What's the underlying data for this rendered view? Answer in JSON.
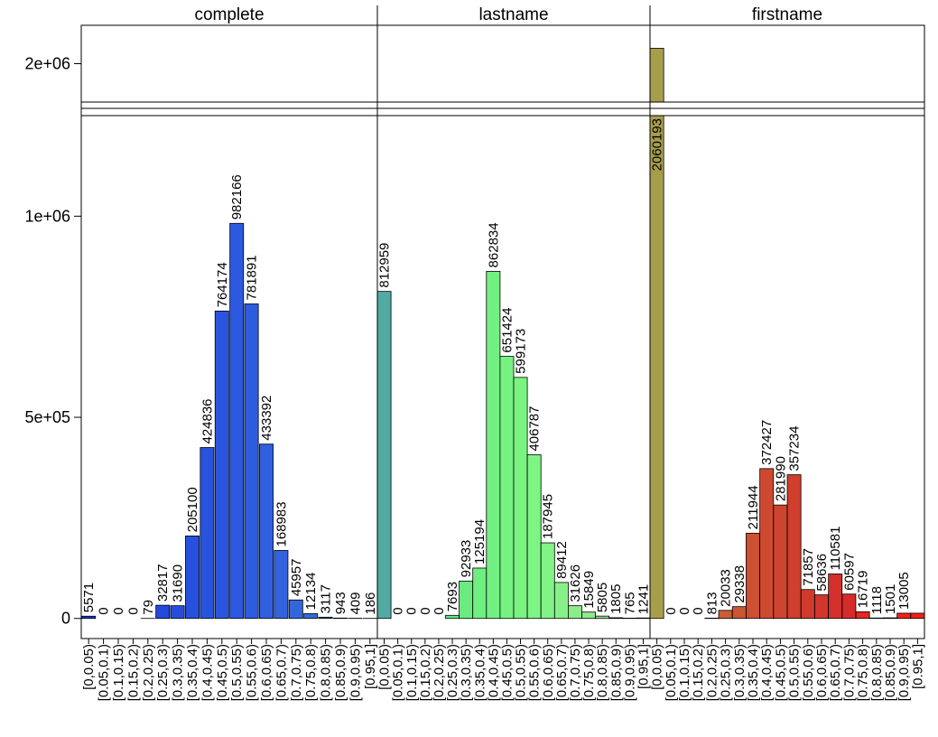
{
  "chart_data": {
    "type": "bar",
    "layout": "trellis",
    "broken_y_axis": true,
    "y_ticks_labels": [
      "0",
      "5e+05",
      "1e+06",
      "2e+06"
    ],
    "y_ticks": [
      0,
      500000,
      1000000,
      2000000
    ],
    "ylim_lower": [
      -50000,
      1250000
    ],
    "ylim_upper": [
      1850000,
      2150000
    ],
    "categories": [
      "[0,0.05)",
      "[0.05,0.1)",
      "[0.1,0.15)",
      "[0.15,0.2)",
      "[0.2,0.25)",
      "[0.25,0.3)",
      "[0.3,0.35)",
      "[0.35,0.4)",
      "[0.4,0.45)",
      "[0.45,0.5)",
      "[0.5,0.55)",
      "[0.55,0.6)",
      "[0.6,0.65)",
      "[0.65,0.7)",
      "[0.7,0.75)",
      "[0.75,0.8)",
      "[0.8,0.85)",
      "[0.85,0.9)",
      "[0.9,0.95)",
      "[0.95,1]"
    ],
    "panels": [
      {
        "title": "complete",
        "values": [
          5571,
          0,
          0,
          0,
          79,
          32817,
          31690,
          205100,
          424836,
          764174,
          982166,
          781891,
          433392,
          168983,
          45957,
          12134,
          3117,
          943,
          409,
          186
        ],
        "colors": [
          "#1a33d6",
          "#1c38d8",
          "#1e3dd9",
          "#2041db",
          "#2245dc",
          "#2449dd",
          "#254ddd",
          "#2650de",
          "#2853de",
          "#2a56df",
          "#2c59df",
          "#2e5cdf",
          "#305fdf",
          "#3263df",
          "#3466db",
          "#366ad6",
          "#386dd0",
          "#3a71cb",
          "#3c74c6",
          "#3e77c1"
        ]
      },
      {
        "title": "lastname",
        "values": [
          812959,
          0,
          0,
          0,
          0,
          7693,
          92933,
          125194,
          862834,
          651424,
          599173,
          406787,
          187945,
          89412,
          31626,
          15849,
          5805,
          1805,
          765,
          1241
        ],
        "colors": [
          "#52aaa3",
          "#55c38f",
          "#58d18a",
          "#5cdc86",
          "#60e384",
          "#66e883",
          "#6aeb82",
          "#6fee82",
          "#72f081",
          "#76f281",
          "#7af381",
          "#7ef483",
          "#82f386",
          "#87f088",
          "#8cec8a",
          "#90e78b",
          "#94e28c",
          "#98dd8d",
          "#9cd88e",
          "#a0d38f"
        ]
      },
      {
        "title": "firstname",
        "values": [
          2060193,
          0,
          0,
          0,
          813,
          20033,
          29338,
          211944,
          372427,
          281990,
          357234,
          71857,
          58636,
          110581,
          60597,
          16719,
          1118,
          1501,
          13005,
          13005
        ],
        "colors": [
          "#a79e4c",
          "#c37a3b",
          "#c57339",
          "#c76c37",
          "#c96536",
          "#c95d34",
          "#ca5632",
          "#cc5031",
          "#cd4a30",
          "#cf442f",
          "#d03e2e",
          "#d1392d",
          "#d2352c",
          "#d4302b",
          "#d52b2a",
          "#e62624",
          "#ee2320",
          "#f1201d",
          "#f31e1b",
          "#f31e1b"
        ]
      }
    ],
    "label_text": [
      [
        "5571",
        "0",
        "0",
        "0",
        "79",
        "32817",
        "31690",
        "205100",
        "424836",
        "764174",
        "982166",
        "781891",
        "433392",
        "168983",
        "45957",
        "12134",
        "3117",
        "943",
        "409",
        "186"
      ],
      [
        "812959",
        "0",
        "0",
        "0",
        "0",
        "7693",
        "92933",
        "125194",
        "862834",
        "651424",
        "599173",
        "406787",
        "187945",
        "89412",
        "31626",
        "15849",
        "5805",
        "1805",
        "765",
        "1241"
      ],
      [
        "2060193",
        "0",
        "0",
        "0",
        "813",
        "20033",
        "29338",
        "211944",
        "372427",
        "281990",
        "357234",
        "71857",
        "58636",
        "110581",
        "60597",
        "16719",
        "1118",
        "1501",
        "13005",
        ""
      ]
    ]
  }
}
